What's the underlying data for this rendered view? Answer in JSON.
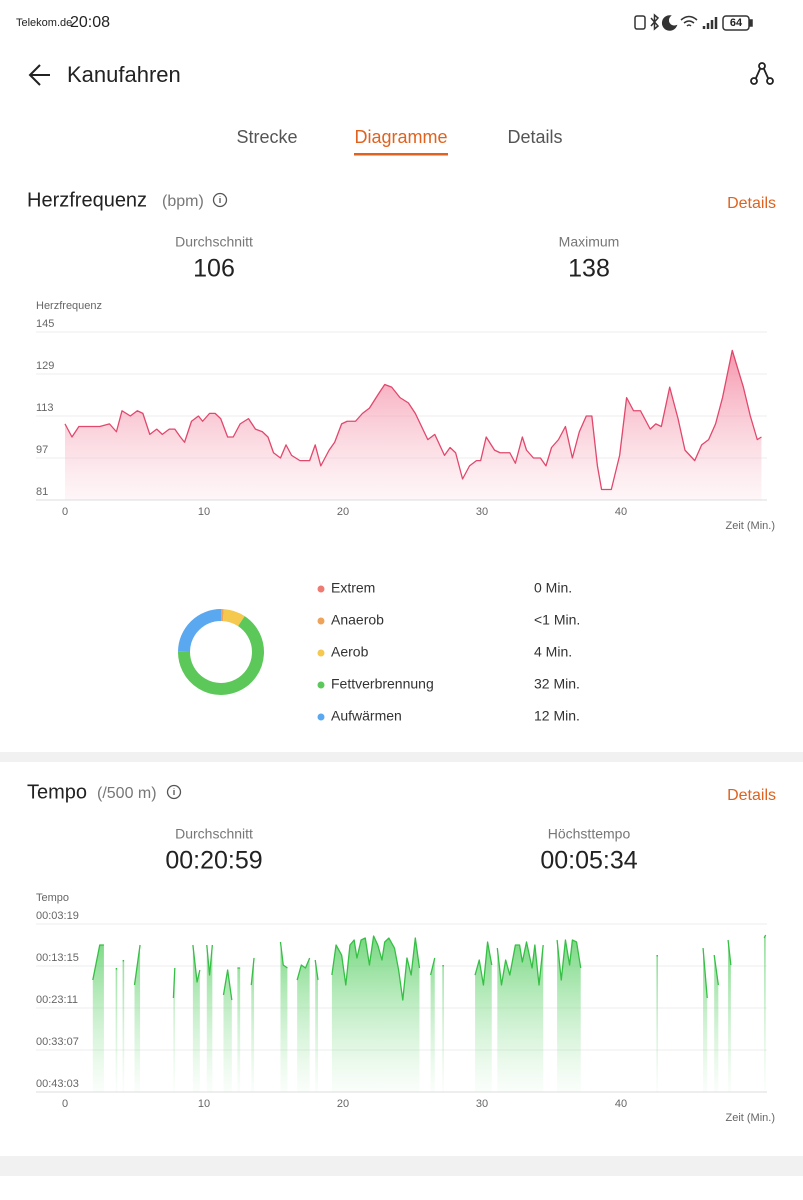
{
  "status_bar": {
    "carrier": "Telekom.de",
    "time": "20:08",
    "battery": "64"
  },
  "header": {
    "title": "Kanufahren"
  },
  "tabs": {
    "items": [
      "Strecke",
      "Diagramme",
      "Details"
    ],
    "active": 1
  },
  "heart_rate": {
    "title": "Herzfrequenz",
    "unit": "(bpm)",
    "details_link": "Details",
    "stats": [
      {
        "label": "Durchschnitt",
        "value": "106"
      },
      {
        "label": "Maximum",
        "value": "138"
      }
    ],
    "chart": {
      "type": "area",
      "y_label": "Herzfrequenz",
      "x_label": "Zeit (Min.)",
      "color": "#e2476c",
      "fill": "#f6a4b7",
      "x": [
        0,
        0.5,
        1,
        2,
        2.5,
        3.2,
        3.7,
        4.1,
        4.7,
        5.2,
        5.6,
        6.1,
        6.6,
        7,
        7.5,
        7.9,
        8.3,
        8.6,
        9.1,
        9.6,
        9.9,
        10.4,
        10.8,
        11.2,
        11.7,
        12.1,
        12.6,
        13.2,
        13.7,
        14.2,
        14.6,
        15,
        15.5,
        15.9,
        16.3,
        16.9,
        17.6,
        18,
        18.4,
        19,
        19.4,
        19.9,
        20.3,
        20.9,
        21.4,
        21.9,
        22.5,
        23,
        23.5,
        24.1,
        24.7,
        25.2,
        26.1,
        26.6,
        27.3,
        27.7,
        28.1,
        28.6,
        29.1,
        29.6,
        29.9,
        30.3,
        30.9,
        31.3,
        32,
        32.4,
        32.9,
        33.2,
        33.7,
        34.2,
        34.6,
        35,
        35.5,
        36,
        36.5,
        37,
        37.5,
        37.9,
        38.3,
        38.6,
        39.3,
        39.9,
        40.4,
        40.9,
        41.4,
        42.1,
        42.5,
        42.9,
        43.5,
        44.1,
        44.6,
        45.3,
        45.8,
        46.3,
        46.8,
        47.3,
        48,
        48.8,
        49.3,
        49.8,
        50.1
      ],
      "values": [
        110,
        105,
        109,
        109,
        109,
        110,
        107,
        115,
        113,
        115,
        114,
        106,
        108,
        106,
        108,
        108,
        105,
        103,
        111,
        113,
        111,
        114,
        114,
        112,
        105,
        105,
        110,
        112,
        108,
        107,
        105,
        99,
        97,
        102,
        98,
        96,
        96,
        102,
        94,
        100,
        103,
        110,
        111,
        111,
        114,
        116,
        121,
        125,
        124,
        120,
        118,
        114,
        104,
        106,
        98,
        101,
        99,
        89,
        94,
        96,
        96,
        105,
        100,
        99,
        99,
        95,
        105,
        100,
        97,
        97,
        94,
        101,
        104,
        109,
        97,
        107,
        113,
        113,
        94,
        85,
        85,
        98,
        120,
        115,
        115,
        108,
        110,
        109,
        124,
        112,
        100,
        96,
        102,
        104,
        110,
        120,
        138,
        124,
        113,
        104,
        105
      ],
      "xlim": [
        0,
        50.5
      ],
      "xticks": [
        0,
        10,
        20,
        30,
        40
      ],
      "ylim": [
        81,
        145
      ],
      "yticks": [
        81,
        97,
        113,
        129,
        145
      ],
      "grid": true
    },
    "zones": {
      "type": "donut",
      "items": [
        {
          "name": "Extrem",
          "color": "#ee7b72",
          "value": 0,
          "value_label": "0 Min."
        },
        {
          "name": "Anaerob",
          "color": "#eda35a",
          "value": 0.5,
          "value_label": "<1 Min."
        },
        {
          "name": "Aerob",
          "color": "#f5c84e",
          "value": 4,
          "value_label": "4 Min."
        },
        {
          "name": "Fettverbrennung",
          "color": "#5cc85a",
          "value": 32,
          "value_label": "32 Min."
        },
        {
          "name": "Aufwärmen",
          "color": "#5aa8ef",
          "value": 12,
          "value_label": "12 Min."
        }
      ]
    }
  },
  "tempo": {
    "title": "Tempo",
    "unit": "(/500 m)",
    "details_link": "Details",
    "stats": [
      {
        "label": "Durchschnitt",
        "value": "00:20:59"
      },
      {
        "label": "Höchsttempo",
        "value": "00:05:34"
      }
    ],
    "chart": {
      "type": "area",
      "y_label": "Tempo",
      "x_label": "Zeit (Min.)",
      "color": "#36bf45",
      "fill": "#6fd97a",
      "y_reversed": true,
      "x": [
        2.0,
        2.5,
        2.8,
        null,
        3.7,
        null,
        4.2,
        null,
        5.0,
        5.4,
        null,
        7.8,
        7.9,
        null,
        9.2,
        9.5,
        9.7,
        null,
        10.2,
        10.4,
        10.6,
        null,
        11.4,
        11.7,
        12.0,
        null,
        12.4,
        12.6,
        null,
        13.4,
        13.6,
        null,
        15.5,
        15.7,
        16.0,
        null,
        16.7,
        17.0,
        17.3,
        17.6,
        null,
        18.0,
        18.2,
        null,
        19.2,
        19.5,
        19.9,
        20.2,
        20.5,
        20.8,
        21.0,
        21.3,
        21.6,
        21.9,
        22.2,
        22.5,
        22.8,
        23.0,
        23.3,
        23.7,
        24.0,
        24.3,
        24.6,
        24.9,
        25.2,
        25.5,
        null,
        26.3,
        26.6,
        null,
        27.2,
        null,
        29.5,
        29.8,
        30.1,
        30.4,
        30.7,
        null,
        31.1,
        31.4,
        31.7,
        32.0,
        32.4,
        32.7,
        32.9,
        33.2,
        33.6,
        33.8,
        34.1,
        34.4,
        null,
        35.4,
        35.7,
        36.0,
        36.3,
        36.5,
        36.8,
        37.1,
        null,
        42.6,
        null,
        45.9,
        46.2,
        null,
        46.7,
        47.0,
        null,
        47.7,
        47.9,
        null,
        50.3,
        50.4
      ],
      "values": [
        994,
        497,
        497,
        null,
        823,
        null,
        710,
        null,
        1065,
        497,
        null,
        1249,
        823,
        null,
        497,
        1022,
        852,
        null,
        497,
        923,
        497,
        null,
        1207,
        852,
        1278,
        null,
        823,
        823,
        null,
        1065,
        681,
        null,
        454,
        781,
        823,
        null,
        994,
        781,
        823,
        681,
        null,
        710,
        994,
        null,
        923,
        497,
        639,
        1065,
        497,
        426,
        681,
        426,
        398,
        781,
        369,
        497,
        710,
        454,
        398,
        540,
        852,
        1278,
        681,
        923,
        398,
        823,
        null,
        923,
        681,
        null,
        781,
        null,
        923,
        710,
        1065,
        454,
        781,
        null,
        540,
        1065,
        710,
        923,
        497,
        497,
        738,
        454,
        823,
        497,
        1065,
        497,
        null,
        426,
        994,
        426,
        781,
        426,
        454,
        823,
        null,
        639,
        null,
        540,
        1249,
        null,
        639,
        1065,
        null,
        426,
        781,
        null,
        398,
        355
      ],
      "xlim": [
        0,
        50.5
      ],
      "xticks": [
        0,
        10,
        20,
        30,
        40
      ],
      "ylim": [
        199,
        2583
      ],
      "yticks": [
        {
          "value": 199,
          "label": "00:03:19"
        },
        {
          "value": 795,
          "label": "00:13:15"
        },
        {
          "value": 1391,
          "label": "00:23:11"
        },
        {
          "value": 1987,
          "label": "00:33:07"
        },
        {
          "value": 2583,
          "label": "00:43:03"
        }
      ],
      "grid": true
    }
  }
}
